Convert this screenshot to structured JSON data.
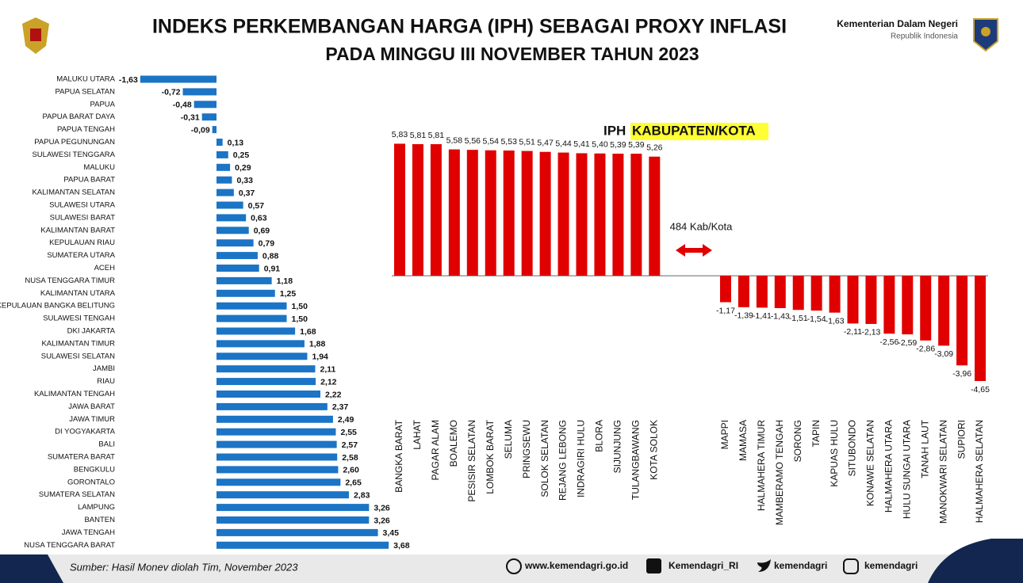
{
  "header": {
    "title_line1": "INDEKS PERKEMBANGAN HARGA (IPH) SEBAGAI PROXY INFLASI",
    "title_line2": "PADA MINGGU III NOVEMBER TAHUN 2023",
    "org": "Kementerian Dalam Negeri",
    "org_sub": "Republik Indonesia"
  },
  "chart_data": [
    {
      "type": "bar",
      "orientation": "horizontal",
      "color": "#1b74c5",
      "xlim": [
        -2,
        4
      ],
      "categories": [
        "MALUKU UTARA",
        "PAPUA SELATAN",
        "PAPUA",
        "PAPUA BARAT DAYA",
        "PAPUA TENGAH",
        "PAPUA PEGUNUNGAN",
        "SULAWESI TENGGARA",
        "MALUKU",
        "PAPUA BARAT",
        "KALIMANTAN SELATAN",
        "SULAWESI UTARA",
        "SULAWESI BARAT",
        "KALIMANTAN BARAT",
        "KEPULAUAN RIAU",
        "SUMATERA UTARA",
        "ACEH",
        "NUSA TENGGARA TIMUR",
        "KALIMANTAN UTARA",
        "KEPULAUAN BANGKA BELITUNG",
        "SULAWESI TENGAH",
        "DKI JAKARTA",
        "KALIMANTAN TIMUR",
        "SULAWESI SELATAN",
        "JAMBI",
        "RIAU",
        "KALIMANTAN TENGAH",
        "JAWA BARAT",
        "JAWA TIMUR",
        "DI YOGYAKARTA",
        "BALI",
        "SUMATERA BARAT",
        "BENGKULU",
        "GORONTALO",
        "SUMATERA SELATAN",
        "LAMPUNG",
        "BANTEN",
        "JAWA TENGAH",
        "NUSA TENGGARA BARAT"
      ],
      "values": [
        -1.63,
        -0.72,
        -0.48,
        -0.31,
        -0.09,
        0.13,
        0.25,
        0.29,
        0.33,
        0.37,
        0.57,
        0.63,
        0.69,
        0.79,
        0.88,
        0.91,
        1.18,
        1.25,
        1.5,
        1.5,
        1.68,
        1.88,
        1.94,
        2.11,
        2.12,
        2.22,
        2.37,
        2.49,
        2.55,
        2.57,
        2.58,
        2.6,
        2.65,
        2.83,
        3.26,
        3.26,
        3.45,
        3.68
      ],
      "value_labels": [
        "-1,63",
        "-0,72",
        "-0,48",
        "-0,31",
        "-0,09",
        "0,13",
        "0,25",
        "0,29",
        "0,33",
        "0,37",
        "0,57",
        "0,63",
        "0,69",
        "0,79",
        "0,88",
        "0,91",
        "1,18",
        "1,25",
        "1,50",
        "1,50",
        "1,68",
        "1,88",
        "1,94",
        "2,11",
        "2,12",
        "2,22",
        "2,37",
        "2,49",
        "2,55",
        "2,57",
        "2,58",
        "2,60",
        "2,65",
        "2,83",
        "3,26",
        "3,26",
        "3,45",
        "3,68"
      ]
    },
    {
      "type": "bar",
      "orientation": "vertical",
      "title_lead": "IPH",
      "title": "KABUPATEN/KOTA",
      "annotation": "484 Kab/Kota",
      "color": "#e00000",
      "ylim": [
        -5,
        7
      ],
      "categories": [
        "BANGKA BARAT",
        "LAHAT",
        "PAGAR ALAM",
        "BOALEMO",
        "PESISIR SELATAN",
        "LOMBOK BARAT",
        "SELUMA",
        "PRINGSEWU",
        "SOLOK SELATAN",
        "REJANG LEBONG",
        "INDRAGIRI HULU",
        "BLORA",
        "SIJUNJUNG",
        "TULANGBAWANG",
        "KOTA SOLOK",
        "MAPPI",
        "MAMASA",
        "HALMAHERA TIMUR",
        "MAMBERAMO TENGAH",
        "SORONG",
        "TAPIN",
        "KAPUAS HULU",
        "SITUBONDO",
        "KONAWE SELATAN",
        "HALMAHERA UTARA",
        "HULU SUNGAI UTARA",
        "TANAH LAUT",
        "MANOKWARI SELATAN",
        "SUPIORI",
        "HALMAHERA SELATAN"
      ],
      "values": [
        5.83,
        5.81,
        5.81,
        5.58,
        5.56,
        5.54,
        5.53,
        5.51,
        5.47,
        5.44,
        5.41,
        5.4,
        5.39,
        5.39,
        5.26,
        -1.17,
        -1.39,
        -1.41,
        -1.43,
        -1.51,
        -1.54,
        -1.63,
        -2.11,
        -2.13,
        -2.56,
        -2.59,
        -2.86,
        -3.09,
        -3.96,
        -4.65
      ],
      "value_labels": [
        "5,83",
        "5,81",
        "5,81",
        "5,58",
        "5,56",
        "5,54",
        "5,53",
        "5,51",
        "5,47",
        "5,44",
        "5,41",
        "5,40",
        "5,39",
        "5,39",
        "5,26",
        "-1,17",
        "-1,39",
        "-1,41",
        "-1,43",
        "-1,51",
        "-1,54",
        "-1,63",
        "-2,11",
        "-2,13",
        "-2,56",
        "-2,59",
        "-2,86",
        "-3,09",
        "-3,96",
        "-4,65"
      ]
    }
  ],
  "footer": {
    "source": "Sumber: Hasil Monev  diolah Tim, November 2023",
    "links": [
      "www.kemendagri.go.id",
      "Kemendagri_RI",
      "kemendagri",
      "kemendagri"
    ]
  }
}
